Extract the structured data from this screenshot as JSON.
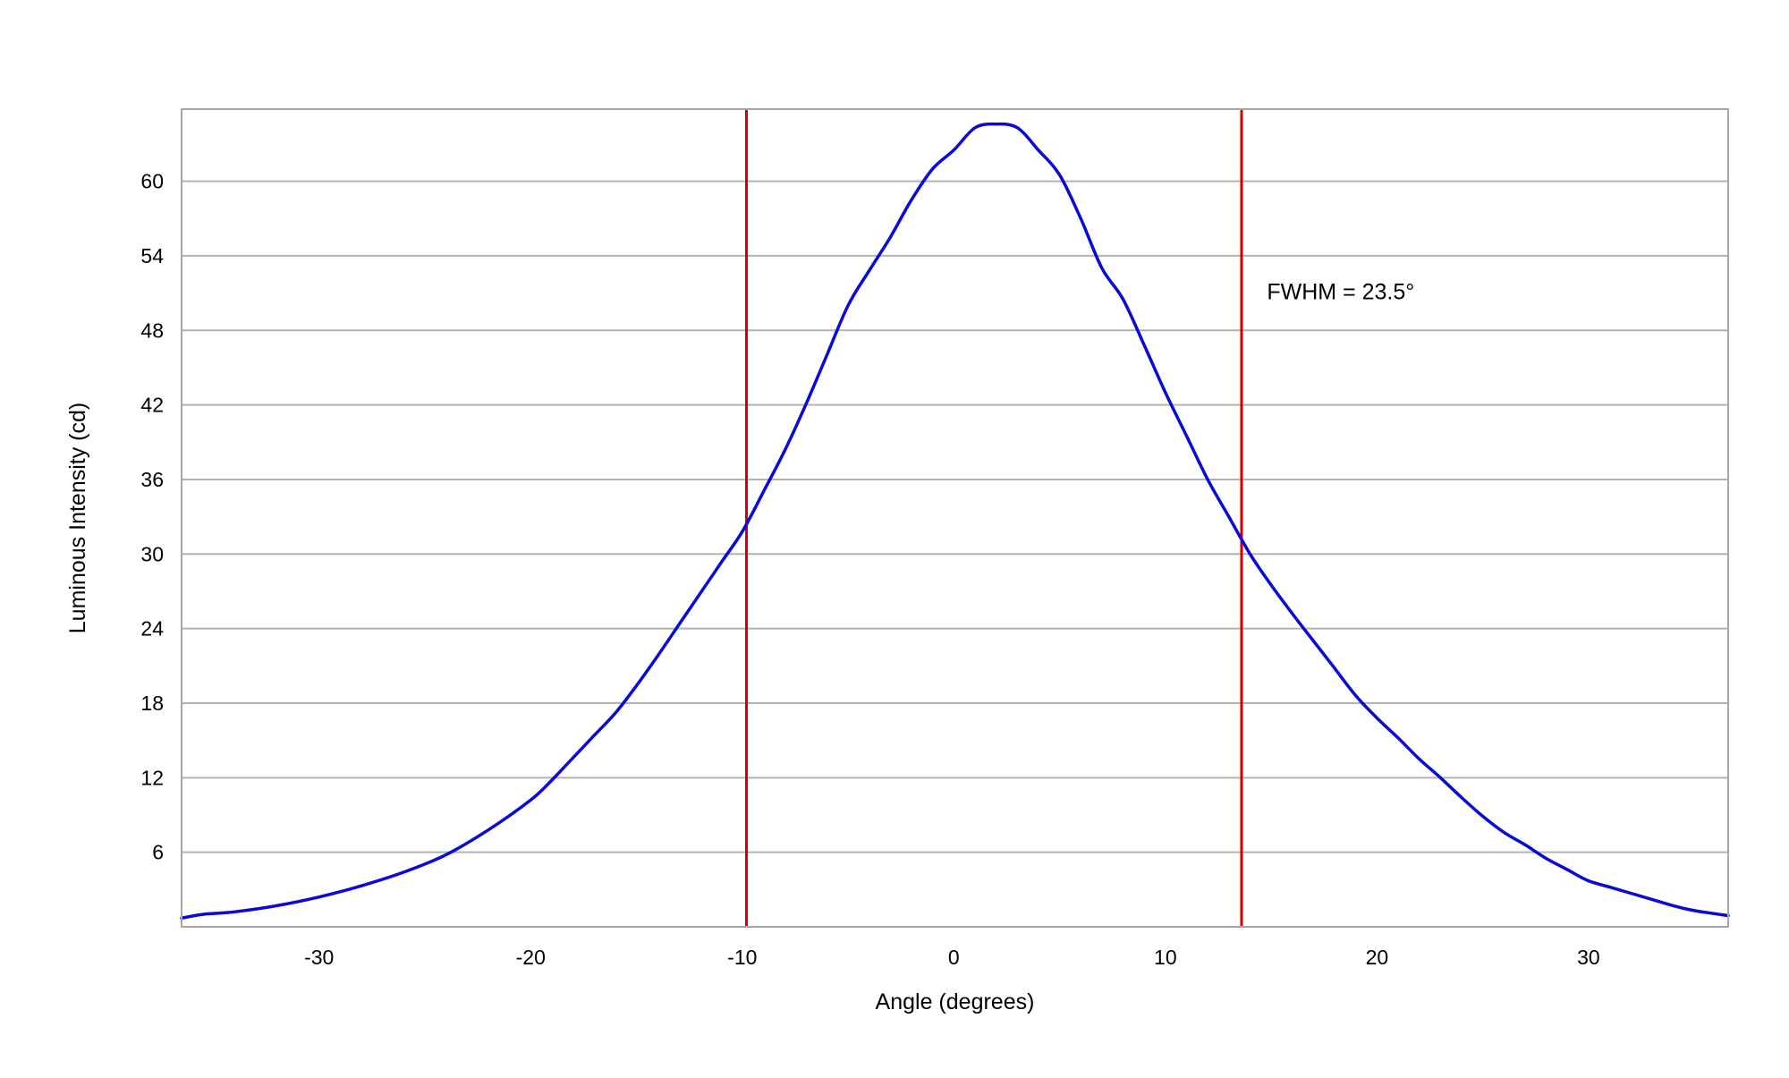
{
  "chart_data": {
    "type": "line",
    "title": "",
    "xlabel": "Angle (degrees)",
    "ylabel": "Luminous Intensity (cd)",
    "xlim": [
      -36.5,
      36.6
    ],
    "ylim": [
      0,
      65.8
    ],
    "xticks": [
      -30,
      -20,
      -10,
      0,
      10,
      20,
      30
    ],
    "yticks": [
      6,
      12,
      18,
      24,
      30,
      36,
      42,
      48,
      54,
      60
    ],
    "grid": {
      "horizontal": true,
      "vertical": false
    },
    "legend": "none",
    "series": [
      {
        "color": "#0a0ad6",
        "points": [
          [
            -36.5,
            0.7
          ],
          [
            -35.5,
            1.0
          ],
          [
            -34,
            1.2
          ],
          [
            -32,
            1.7
          ],
          [
            -30,
            2.4
          ],
          [
            -28,
            3.3
          ],
          [
            -26,
            4.4
          ],
          [
            -24,
            5.8
          ],
          [
            -22,
            7.8
          ],
          [
            -20,
            10.2
          ],
          [
            -19,
            11.8
          ],
          [
            -18,
            13.6
          ],
          [
            -17,
            15.4
          ],
          [
            -16,
            17.2
          ],
          [
            -15,
            19.4
          ],
          [
            -14,
            21.8
          ],
          [
            -13,
            24.3
          ],
          [
            -12,
            26.8
          ],
          [
            -11,
            29.3
          ],
          [
            -10,
            31.8
          ],
          [
            -9,
            35.0
          ],
          [
            -8,
            38.3
          ],
          [
            -7,
            42.0
          ],
          [
            -6,
            46.0
          ],
          [
            -5,
            50.0
          ],
          [
            -4,
            52.8
          ],
          [
            -3,
            55.5
          ],
          [
            -2,
            58.5
          ],
          [
            -1,
            61.0
          ],
          [
            0,
            62.5
          ],
          [
            1,
            64.3
          ],
          [
            2,
            64.6
          ],
          [
            3,
            64.3
          ],
          [
            4,
            62.5
          ],
          [
            5,
            60.5
          ],
          [
            6,
            57.0
          ],
          [
            7,
            53.0
          ],
          [
            8,
            50.5
          ],
          [
            9,
            46.8
          ],
          [
            10,
            43.0
          ],
          [
            11,
            39.5
          ],
          [
            12,
            36.0
          ],
          [
            13,
            33.0
          ],
          [
            14,
            30.0
          ],
          [
            15,
            27.5
          ],
          [
            16,
            25.2
          ],
          [
            17,
            23.0
          ],
          [
            18,
            20.8
          ],
          [
            19,
            18.6
          ],
          [
            20,
            16.8
          ],
          [
            21,
            15.2
          ],
          [
            22,
            13.5
          ],
          [
            23,
            12.0
          ],
          [
            24,
            10.4
          ],
          [
            25,
            8.9
          ],
          [
            26,
            7.6
          ],
          [
            27,
            6.6
          ],
          [
            28,
            5.5
          ],
          [
            29,
            4.6
          ],
          [
            30,
            3.7
          ],
          [
            31,
            3.2
          ],
          [
            32,
            2.7
          ],
          [
            33,
            2.2
          ],
          [
            34,
            1.7
          ],
          [
            35,
            1.3
          ],
          [
            36.6,
            0.9
          ]
        ]
      }
    ],
    "vertical_lines": [
      {
        "x": -9.8,
        "color": "#d40000"
      },
      {
        "x": 13.6,
        "color": "#d40000"
      }
    ],
    "annotations": [
      {
        "text": "FWHM = 23.5°",
        "x": 14.8,
        "y": 50.5
      }
    ]
  }
}
